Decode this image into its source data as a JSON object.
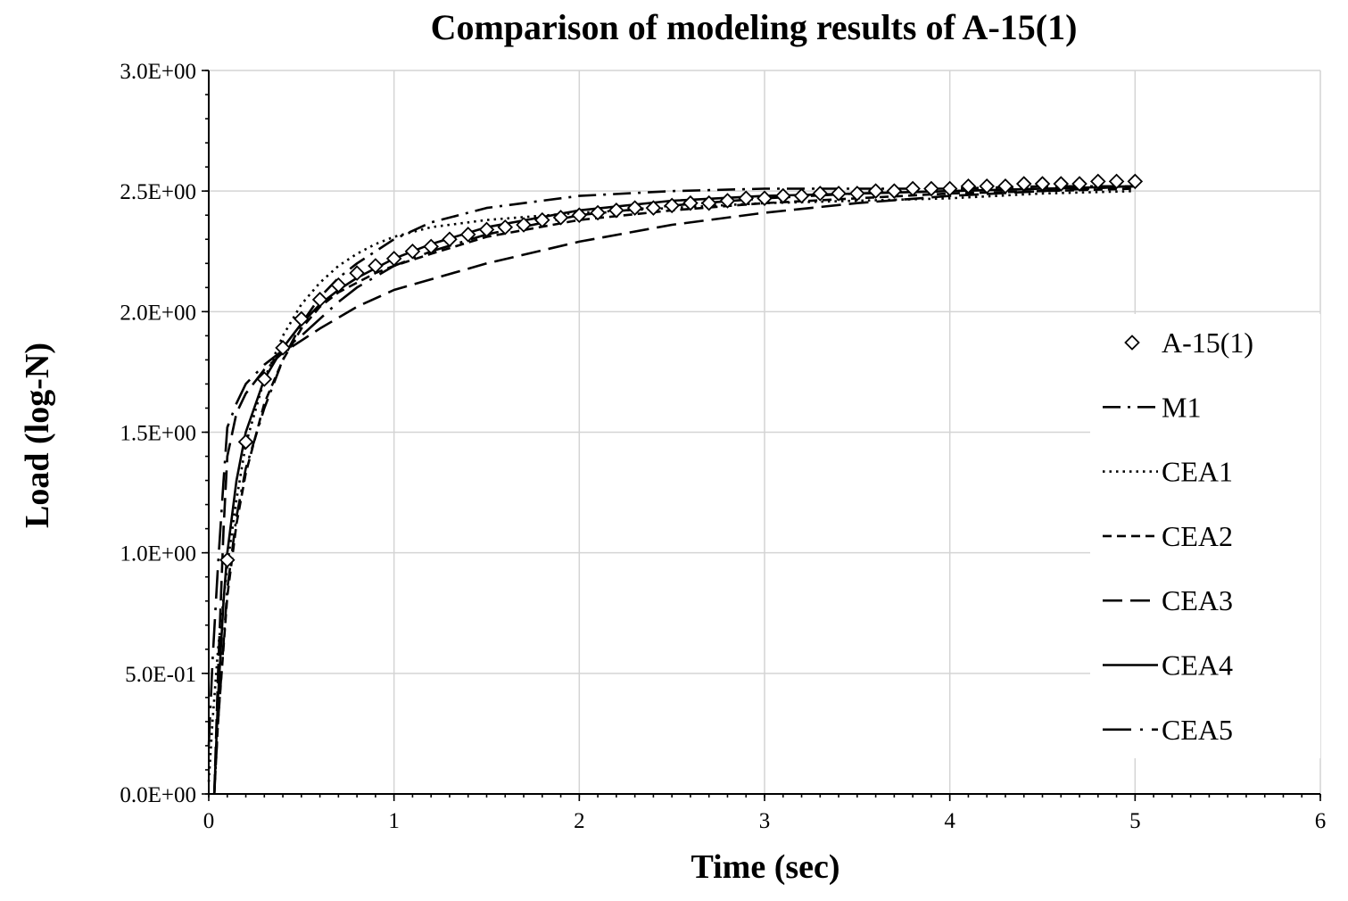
{
  "chart_data": {
    "type": "scatter",
    "title": "Comparison of modeling results of A-15(1)",
    "xlabel": "Time (sec)",
    "ylabel": "Load (log-N)",
    "xlim": [
      0,
      6
    ],
    "ylim": [
      0,
      3
    ],
    "x_ticks": [
      0,
      1,
      2,
      3,
      4,
      5,
      6
    ],
    "x_tick_labels": [
      "0",
      "1",
      "2",
      "3",
      "4",
      "5",
      "6"
    ],
    "y_ticks": [
      0,
      0.5,
      1.0,
      1.5,
      2.0,
      2.5,
      3.0
    ],
    "y_tick_labels": [
      "0.0E+00",
      "5.0E-01",
      "1.0E+00",
      "1.5E+00",
      "2.0E+00",
      "2.5E+00",
      "3.0E+00"
    ],
    "grid": true,
    "legend_position": "right",
    "series": [
      {
        "name": "A-15(1)",
        "style": "diamond-markers",
        "x": [
          0.1,
          0.2,
          0.3,
          0.4,
          0.5,
          0.6,
          0.7,
          0.8,
          0.9,
          1.0,
          1.1,
          1.2,
          1.3,
          1.4,
          1.5,
          1.6,
          1.7,
          1.8,
          1.9,
          2.0,
          2.1,
          2.2,
          2.3,
          2.4,
          2.5,
          2.6,
          2.7,
          2.8,
          2.9,
          3.0,
          3.1,
          3.2,
          3.3,
          3.4,
          3.5,
          3.6,
          3.7,
          3.8,
          3.9,
          4.0,
          4.1,
          4.2,
          4.3,
          4.4,
          4.5,
          4.6,
          4.7,
          4.8,
          4.9,
          5.0
        ],
        "y": [
          0.97,
          1.46,
          1.72,
          1.85,
          1.97,
          2.05,
          2.11,
          2.16,
          2.19,
          2.22,
          2.25,
          2.27,
          2.3,
          2.32,
          2.34,
          2.35,
          2.36,
          2.38,
          2.39,
          2.4,
          2.41,
          2.42,
          2.43,
          2.43,
          2.44,
          2.45,
          2.45,
          2.46,
          2.47,
          2.47,
          2.48,
          2.48,
          2.49,
          2.49,
          2.49,
          2.5,
          2.5,
          2.51,
          2.51,
          2.51,
          2.52,
          2.52,
          2.52,
          2.53,
          2.53,
          2.53,
          2.53,
          2.54,
          2.54,
          2.54
        ]
      },
      {
        "name": "M1",
        "style": "dash-dot",
        "x": [
          0.03,
          0.05,
          0.1,
          0.15,
          0.2,
          0.3,
          0.4,
          0.5,
          0.6,
          0.7,
          0.8,
          0.9,
          1.0,
          1.2,
          1.5,
          2.0,
          2.5,
          3.0,
          3.5,
          4.0,
          4.5,
          5.0
        ],
        "y": [
          0.0,
          0.3,
          0.85,
          1.15,
          1.35,
          1.6,
          1.8,
          1.95,
          2.06,
          2.14,
          2.2,
          2.25,
          2.3,
          2.37,
          2.43,
          2.48,
          2.5,
          2.51,
          2.51,
          2.51,
          2.52,
          2.52
        ]
      },
      {
        "name": "CEA1",
        "style": "dotted",
        "x": [
          0.0,
          0.02,
          0.05,
          0.1,
          0.15,
          0.2,
          0.3,
          0.4,
          0.5,
          0.6,
          0.7,
          0.8,
          0.9,
          1.0,
          1.2,
          1.5,
          2.0,
          2.5,
          3.0,
          3.5,
          4.0,
          4.5,
          5.0
        ],
        "y": [
          0.05,
          0.3,
          0.6,
          0.95,
          1.22,
          1.45,
          1.72,
          1.9,
          2.03,
          2.12,
          2.19,
          2.24,
          2.28,
          2.31,
          2.35,
          2.38,
          2.41,
          2.43,
          2.45,
          2.46,
          2.47,
          2.49,
          2.5
        ]
      },
      {
        "name": "CEA2",
        "style": "short-dash",
        "x": [
          0.03,
          0.05,
          0.1,
          0.15,
          0.2,
          0.3,
          0.4,
          0.5,
          0.6,
          0.7,
          0.8,
          0.9,
          1.0,
          1.2,
          1.5,
          2.0,
          2.5,
          3.0,
          3.5,
          4.0,
          4.5,
          5.0
        ],
        "y": [
          0.0,
          0.3,
          0.82,
          1.12,
          1.33,
          1.62,
          1.8,
          1.93,
          2.02,
          2.08,
          2.12,
          2.16,
          2.19,
          2.24,
          2.31,
          2.38,
          2.42,
          2.45,
          2.47,
          2.49,
          2.5,
          2.51
        ]
      },
      {
        "name": "CEA3",
        "style": "long-dash",
        "x": [
          0.03,
          0.05,
          0.08,
          0.1,
          0.15,
          0.2,
          0.3,
          0.4,
          0.5,
          0.6,
          0.8,
          1.0,
          1.5,
          2.0,
          2.5,
          3.0,
          3.5,
          4.0,
          4.5,
          5.0
        ],
        "y": [
          0.0,
          0.5,
          1.1,
          1.4,
          1.58,
          1.66,
          1.76,
          1.83,
          1.88,
          1.93,
          2.02,
          2.09,
          2.2,
          2.29,
          2.36,
          2.41,
          2.45,
          2.48,
          2.5,
          2.52
        ]
      },
      {
        "name": "CEA4",
        "style": "solid",
        "x": [
          0.03,
          0.05,
          0.08,
          0.1,
          0.15,
          0.2,
          0.3,
          0.4,
          0.5,
          0.6,
          0.7,
          0.8,
          1.0,
          1.2,
          1.5,
          2.0,
          2.5,
          3.0,
          3.5,
          4.0,
          4.5,
          5.0
        ],
        "y": [
          0.0,
          0.4,
          0.8,
          1.0,
          1.3,
          1.5,
          1.72,
          1.85,
          1.95,
          2.03,
          2.09,
          2.14,
          2.22,
          2.28,
          2.35,
          2.42,
          2.46,
          2.48,
          2.49,
          2.5,
          2.51,
          2.52
        ]
      },
      {
        "name": "CEA5",
        "style": "long-dash-dot",
        "x": [
          0.0,
          0.02,
          0.05,
          0.08,
          0.1,
          0.15,
          0.2,
          0.3,
          0.4,
          0.5,
          0.6,
          0.7,
          0.8,
          1.0,
          1.2,
          1.5,
          2.0,
          2.5,
          3.0,
          3.5,
          4.0,
          4.5,
          5.0
        ],
        "y": [
          0.2,
          0.55,
          0.95,
          1.3,
          1.52,
          1.62,
          1.7,
          1.78,
          1.84,
          1.9,
          1.97,
          2.04,
          2.1,
          2.19,
          2.25,
          2.32,
          2.4,
          2.44,
          2.47,
          2.49,
          2.5,
          2.51,
          2.52
        ]
      }
    ]
  }
}
